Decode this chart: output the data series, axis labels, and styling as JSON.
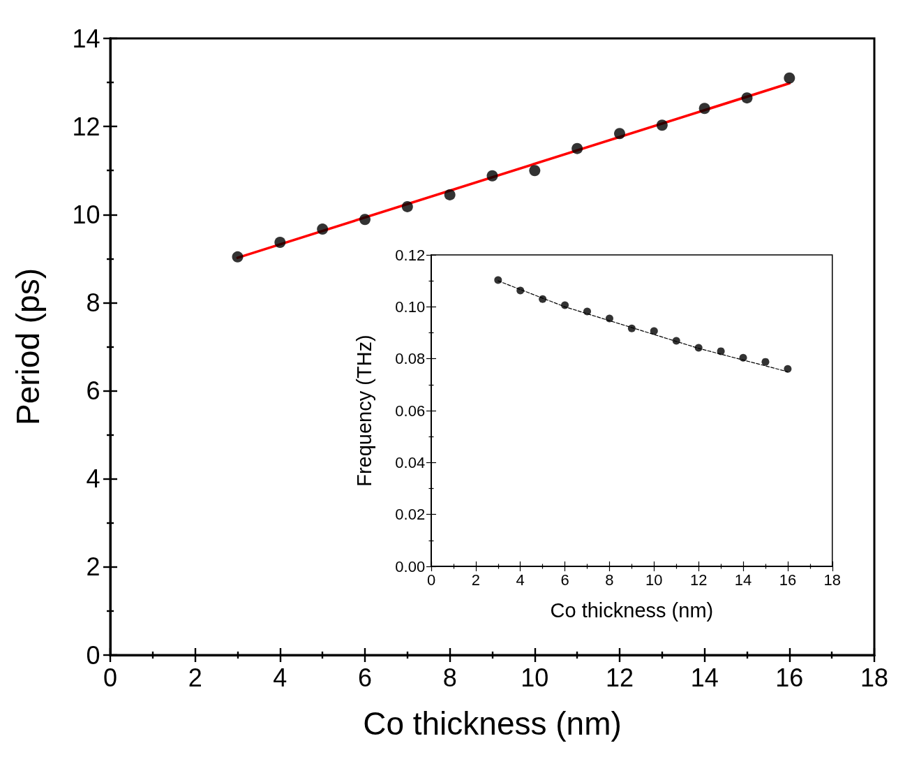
{
  "chart_data": [
    {
      "type": "scatter",
      "xlabel": "Co thickness (nm)",
      "ylabel": "Period (ps)",
      "xlim": [
        0,
        18
      ],
      "xticks": [
        0,
        2,
        4,
        6,
        8,
        10,
        12,
        14,
        16,
        18
      ],
      "ylim": [
        0,
        14
      ],
      "yticks": [
        0,
        2,
        4,
        6,
        8,
        10,
        12,
        14
      ],
      "grid": false,
      "series": [
        {
          "marker": "circle",
          "color": "#000000",
          "x": [
            3,
            4,
            5,
            6,
            7,
            8,
            9,
            10,
            11,
            12,
            13,
            14,
            15,
            16
          ],
          "values": [
            9.04,
            9.37,
            9.67,
            9.89,
            10.18,
            10.45,
            10.88,
            11.0,
            11.5,
            11.84,
            12.03,
            12.41,
            12.65,
            13.1
          ]
        },
        {
          "type": "line",
          "color": "#ff0000",
          "line_style": "solid",
          "x": [
            3,
            16
          ],
          "values": [
            9.02,
            12.98
          ]
        }
      ]
    },
    {
      "type": "scatter",
      "xlabel": "Co thickness (nm)",
      "ylabel": "Frequency (THz)",
      "xlim": [
        0,
        18
      ],
      "xticks": [
        0,
        2,
        4,
        6,
        8,
        10,
        12,
        14,
        16,
        18
      ],
      "ylim": [
        0,
        0.12
      ],
      "yticks": [
        {
          "value": 0,
          "label": "0.00"
        },
        {
          "value": 0.02,
          "label": "0.02"
        },
        {
          "value": 0.04,
          "label": "0.04"
        },
        {
          "value": 0.06,
          "label": "0.06"
        },
        {
          "value": 0.08,
          "label": "0.08"
        },
        {
          "value": 0.1,
          "label": "0.10"
        },
        {
          "value": 0.12,
          "label": "0.12"
        }
      ],
      "grid": false,
      "series": [
        {
          "marker": "circle",
          "color": "#000000",
          "x": [
            3,
            4,
            5,
            6,
            7,
            8,
            9,
            10,
            11,
            12,
            13,
            14,
            15,
            16
          ],
          "values": [
            0.1103,
            0.1063,
            0.103,
            0.1006,
            0.0982,
            0.0955,
            0.0917,
            0.0907,
            0.0869,
            0.0842,
            0.0829,
            0.0804,
            0.0788,
            0.0761
          ]
        },
        {
          "type": "line",
          "color": "#000000",
          "line_style": "dashed",
          "x": [
            3,
            6,
            9,
            12,
            16
          ],
          "values": [
            0.11,
            0.1,
            0.092,
            0.084,
            0.075
          ]
        }
      ]
    }
  ]
}
